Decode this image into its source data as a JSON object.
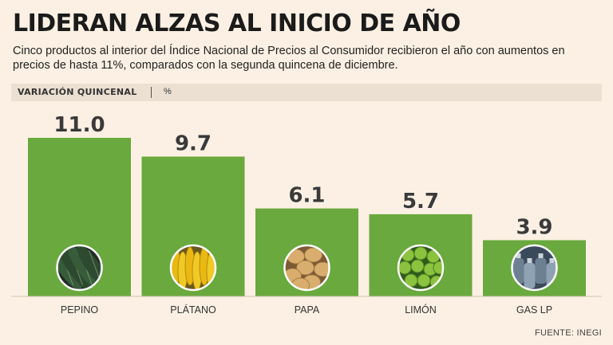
{
  "header": {
    "title": "LIDERAN ALZAS AL INICIO DE AÑO",
    "subtitle": "Cinco productos al interior del Índice Nacional de Precios al Consumidor recibieron el año con aumentos en precios de hasta 11%, comparados con la segunda quincena de diciembre."
  },
  "strip": {
    "label": "VARIACIÓN QUINCENAL",
    "unit": "%"
  },
  "chart_data": {
    "type": "bar",
    "title": "VARIACIÓN QUINCENAL",
    "ylabel": "%",
    "categories": [
      "PEPINO",
      "PLÁTANO",
      "PAPA",
      "LIMÓN",
      "GAS LP"
    ],
    "values": [
      11.0,
      9.7,
      6.1,
      5.7,
      3.9
    ],
    "value_labels": [
      "11.0",
      "9.7",
      "6.1",
      "5.7",
      "3.9"
    ],
    "ylim": [
      0,
      11
    ],
    "bar_color": "#69a93d",
    "icons": [
      "cucumber-icon",
      "banana-icon",
      "potato-icon",
      "lime-icon",
      "gas-cylinder-icon"
    ]
  },
  "footer": {
    "source": "FUENTE: INEGI"
  }
}
